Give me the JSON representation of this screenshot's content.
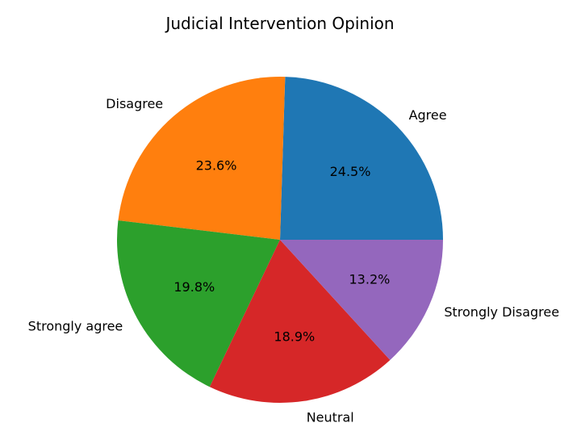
{
  "chart_data": {
    "type": "pie",
    "title": "Judicial Intervention Opinion",
    "categories": [
      "Agree",
      "Disagree",
      "Strongly agree",
      "Neutral",
      "Strongly Disagree"
    ],
    "values": [
      24.5,
      23.6,
      19.8,
      18.9,
      13.2
    ],
    "labels": [
      "24.5%",
      "23.6%",
      "19.8%",
      "18.9%",
      "13.2%"
    ],
    "colors": [
      "#1f77b4",
      "#ff7f0e",
      "#2ca02c",
      "#d62728",
      "#9467bd"
    ],
    "start_angle_deg": 0,
    "direction": "counterclockwise",
    "legend": "none"
  }
}
